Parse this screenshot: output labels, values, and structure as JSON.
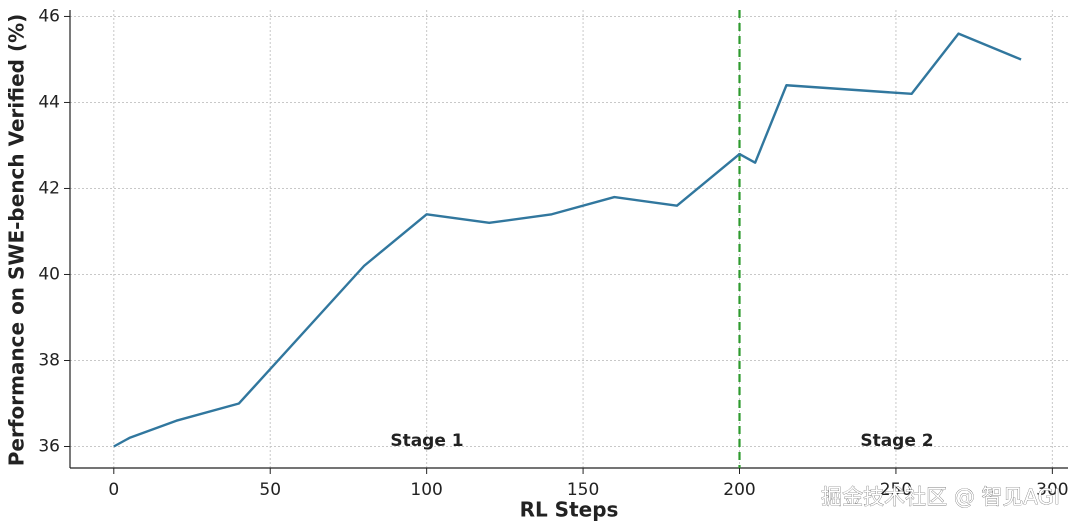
{
  "chart_data": {
    "type": "line",
    "x_label": "RL Steps",
    "y_label": "Performance on SWE-bench Verified (%)",
    "x": [
      0,
      5,
      20,
      40,
      80,
      100,
      120,
      140,
      160,
      180,
      200,
      205,
      215,
      255,
      270,
      290
    ],
    "series": [
      {
        "name": "SWE-bench Verified",
        "color": "#31779e",
        "values": [
          36.0,
          36.2,
          36.6,
          37.0,
          40.2,
          41.4,
          41.2,
          41.4,
          41.8,
          41.6,
          42.8,
          42.6,
          44.4,
          44.2,
          45.6,
          45.0
        ]
      }
    ],
    "xlim": [
      -14,
      305
    ],
    "ylim": [
      35.5,
      46.15
    ],
    "xticks": [
      0,
      50,
      100,
      150,
      200,
      250,
      300
    ],
    "yticks": [
      36,
      38,
      40,
      42,
      44,
      46
    ],
    "grid": true,
    "vlines": [
      {
        "x": 200,
        "color": "#2e9a2e",
        "style": "dashed"
      }
    ],
    "annotations": [
      "Stage 1",
      "Stage 2"
    ],
    "watermark": "掘金技术社区 @ 智见AGI"
  }
}
